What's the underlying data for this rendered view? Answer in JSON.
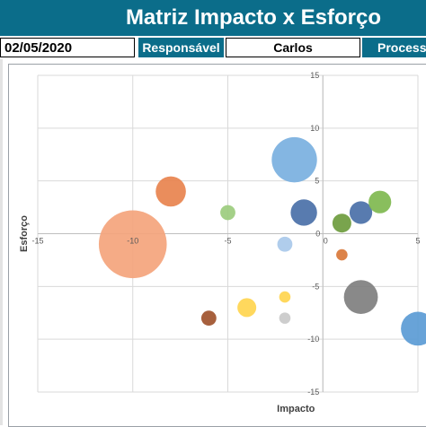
{
  "header": {
    "title": "Matriz Impacto x Esforço",
    "date": "02/05/2020",
    "responsavel_label": "Responsável",
    "responsavel_value": "Carlos",
    "processo_label": "Processo"
  },
  "colors": {
    "header_bg": "#0b6d8a",
    "header_text": "#ffffff"
  },
  "chart_data": {
    "type": "scatter",
    "subtype": "bubble",
    "title": "",
    "xlabel": "Impacto",
    "ylabel": "Esforço",
    "xlim": [
      -15,
      5
    ],
    "ylim": [
      -15,
      15
    ],
    "x_ticks": [
      -15,
      -10,
      -5,
      0,
      5
    ],
    "y_ticks": [
      15,
      10,
      5,
      0,
      -5,
      -10,
      -15
    ],
    "grid": true,
    "points": [
      {
        "x": -10,
        "y": -1,
        "size": 18,
        "color": "#f4a47c"
      },
      {
        "x": -8,
        "y": 4,
        "size": 8,
        "color": "#e8834e"
      },
      {
        "x": -5,
        "y": 2,
        "size": 4,
        "color": "#9ccc7e"
      },
      {
        "x": -1.5,
        "y": 7,
        "size": 12,
        "color": "#7ab0df"
      },
      {
        "x": -1,
        "y": 2,
        "size": 7,
        "color": "#4a70a8"
      },
      {
        "x": -2,
        "y": -1,
        "size": 4,
        "color": "#a9c9ea"
      },
      {
        "x": 1,
        "y": 1,
        "size": 5,
        "color": "#6e9c3e"
      },
      {
        "x": 2,
        "y": 2,
        "size": 6,
        "color": "#4a70a8"
      },
      {
        "x": 3,
        "y": 3,
        "size": 6,
        "color": "#7fb84f"
      },
      {
        "x": 1,
        "y": -2,
        "size": 3,
        "color": "#d9783a"
      },
      {
        "x": 2,
        "y": -6,
        "size": 9,
        "color": "#7f7f7f"
      },
      {
        "x": 5,
        "y": -9,
        "size": 9,
        "color": "#5b9bd5"
      },
      {
        "x": -4,
        "y": -7,
        "size": 5,
        "color": "#ffd54f"
      },
      {
        "x": -2,
        "y": -6,
        "size": 3,
        "color": "#ffd54f"
      },
      {
        "x": -6,
        "y": -8,
        "size": 4,
        "color": "#a0522d"
      },
      {
        "x": -2,
        "y": -8,
        "size": 3,
        "color": "#c9c9c9"
      }
    ]
  }
}
